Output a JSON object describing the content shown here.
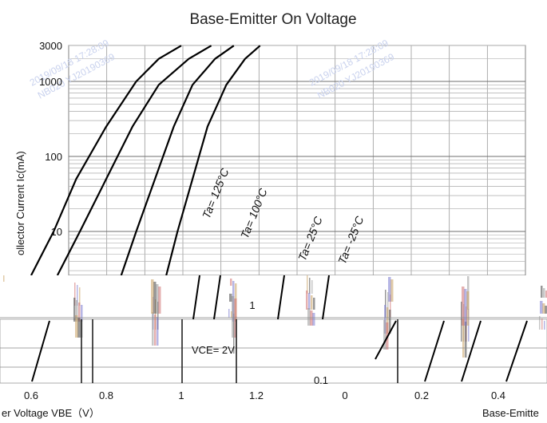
{
  "chart_data": {
    "type": "line",
    "title": "Base-Emitter On Voltage",
    "xlabel": "er Voltage  VBE（V）",
    "xlabel_right": "Base-Emitte",
    "ylabel": "ollector Current   Ic(mA)",
    "y_scale": "log",
    "ylim": [
      1,
      3000
    ],
    "xlim": [
      0.56,
      1.28
    ],
    "y_ticks": [
      "3000",
      "1000",
      "100",
      "10"
    ],
    "x_ticks": [
      "0.6",
      "0.8",
      "1",
      "1.2"
    ],
    "inset": {
      "y_ticks": [
        "1",
        "0.1"
      ],
      "x_ticks": [
        "0",
        "0.2",
        "0.4"
      ]
    },
    "condition": "VCE= 2V",
    "series": [
      {
        "name": "Ta= 125°C",
        "x": [
          0.6,
          0.66,
          0.72,
          0.8,
          0.88,
          0.94,
          1.0
        ],
        "y": [
          2,
          10,
          50,
          250,
          1000,
          2000,
          3000
        ]
      },
      {
        "name": "Ta= 100°C",
        "x": [
          0.67,
          0.73,
          0.8,
          0.87,
          0.94,
          1.02,
          1.08
        ],
        "y": [
          2,
          10,
          50,
          250,
          900,
          2000,
          3000
        ]
      },
      {
        "name": "Ta= 25°C",
        "x": [
          0.84,
          0.88,
          0.93,
          0.98,
          1.03,
          1.09,
          1.14
        ],
        "y": [
          2,
          10,
          50,
          250,
          900,
          2000,
          3000
        ]
      },
      {
        "name": "Ta= -25°C",
        "x": [
          0.96,
          0.99,
          1.03,
          1.07,
          1.12,
          1.17,
          1.21
        ],
        "y": [
          2,
          10,
          50,
          250,
          900,
          2000,
          3000
        ]
      }
    ],
    "grid": true
  }
}
